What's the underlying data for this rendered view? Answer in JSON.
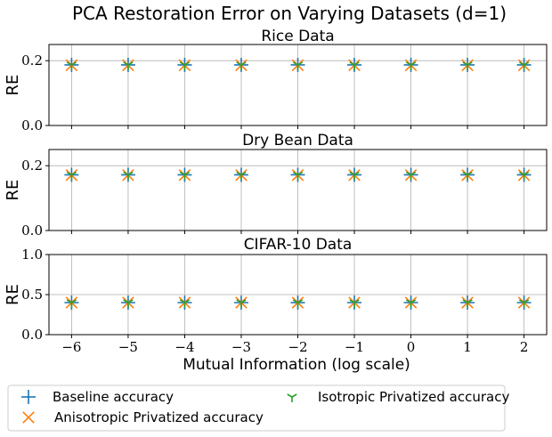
{
  "figure_title": "PCA Restoration Error on Varying Datasets (d=1)",
  "xlabel": "Mutual Information (log scale)",
  "legend": [
    {
      "label": "Baseline accuracy",
      "marker": "plus",
      "color": "#1f77b4"
    },
    {
      "label": "Anisotropic Privatized accuracy",
      "marker": "x",
      "color": "#ff7f0e"
    },
    {
      "label": "Isotropic Privatized accuracy",
      "marker": "tri_down",
      "color": "#2ca02c"
    }
  ],
  "chart_data": [
    {
      "type": "scatter",
      "title": "Rice Data",
      "ylabel": "RE",
      "xlabel": "",
      "x": [
        -6,
        -5,
        -4,
        -3,
        -2,
        -1,
        0,
        1,
        2
      ],
      "xticks": [
        "−6",
        "−5",
        "−4",
        "−3",
        "−2",
        "−1",
        "0",
        "1",
        "2"
      ],
      "xlim": [
        -6.4,
        2.4
      ],
      "ylim": [
        0,
        0.25
      ],
      "yticks": [
        "0.0",
        "0.2"
      ],
      "ytick_values": [
        0,
        0.2
      ],
      "grid": true,
      "series": [
        {
          "name": "Baseline accuracy",
          "values": [
            0.187,
            0.187,
            0.187,
            0.187,
            0.187,
            0.187,
            0.187,
            0.187,
            0.187
          ]
        },
        {
          "name": "Anisotropic Privatized accuracy",
          "values": [
            0.186,
            0.186,
            0.186,
            0.186,
            0.186,
            0.186,
            0.186,
            0.186,
            0.186
          ]
        },
        {
          "name": "Isotropic Privatized accuracy",
          "values": [
            0.187,
            0.187,
            0.187,
            0.187,
            0.187,
            0.187,
            0.187,
            0.187,
            0.187
          ]
        }
      ]
    },
    {
      "type": "scatter",
      "title": "Dry Bean Data",
      "ylabel": "RE",
      "xlabel": "",
      "x": [
        -6,
        -5,
        -4,
        -3,
        -2,
        -1,
        0,
        1,
        2
      ],
      "xticks": [
        "−6",
        "−5",
        "−4",
        "−3",
        "−2",
        "−1",
        "0",
        "1",
        "2"
      ],
      "xlim": [
        -6.4,
        2.4
      ],
      "ylim": [
        0,
        0.25
      ],
      "yticks": [
        "0.0",
        "0.2"
      ],
      "ytick_values": [
        0,
        0.2
      ],
      "grid": true,
      "series": [
        {
          "name": "Baseline accuracy",
          "values": [
            0.172,
            0.172,
            0.172,
            0.172,
            0.172,
            0.172,
            0.172,
            0.172,
            0.172
          ]
        },
        {
          "name": "Anisotropic Privatized accuracy",
          "values": [
            0.171,
            0.171,
            0.171,
            0.171,
            0.171,
            0.171,
            0.171,
            0.171,
            0.171
          ]
        },
        {
          "name": "Isotropic Privatized accuracy",
          "values": [
            0.172,
            0.172,
            0.172,
            0.172,
            0.172,
            0.172,
            0.172,
            0.172,
            0.172
          ]
        }
      ]
    },
    {
      "type": "scatter",
      "title": "CIFAR-10 Data",
      "ylabel": "RE",
      "xlabel": "Mutual Information (log scale)",
      "x": [
        -6,
        -5,
        -4,
        -3,
        -2,
        -1,
        0,
        1,
        2
      ],
      "xticks": [
        "−6",
        "−5",
        "−4",
        "−3",
        "−2",
        "−1",
        "0",
        "1",
        "2"
      ],
      "xlim": [
        -6.4,
        2.4
      ],
      "ylim": [
        0,
        1.0
      ],
      "yticks": [
        "0.0",
        "0.5",
        "1.0"
      ],
      "ytick_values": [
        0,
        0.5,
        1.0
      ],
      "grid": true,
      "series": [
        {
          "name": "Baseline accuracy",
          "values": [
            0.4,
            0.4,
            0.4,
            0.4,
            0.4,
            0.4,
            0.4,
            0.4,
            0.4
          ]
        },
        {
          "name": "Anisotropic Privatized accuracy",
          "values": [
            0.4,
            0.4,
            0.4,
            0.4,
            0.4,
            0.4,
            0.4,
            0.4,
            0.4
          ]
        },
        {
          "name": "Isotropic Privatized accuracy",
          "values": [
            0.4,
            0.4,
            0.4,
            0.4,
            0.4,
            0.4,
            0.4,
            0.4,
            0.4
          ]
        }
      ]
    }
  ]
}
